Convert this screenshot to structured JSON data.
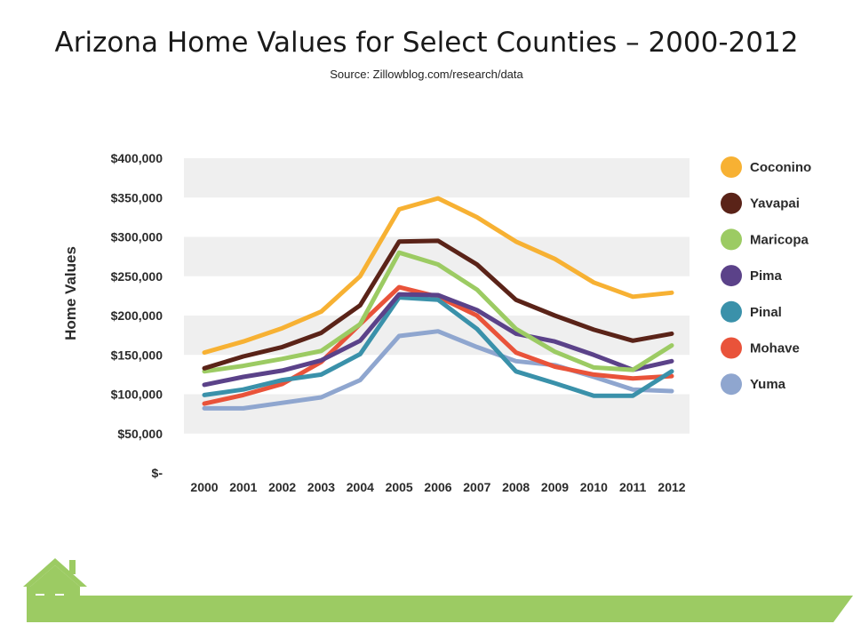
{
  "header": {
    "title": "Arizona Home Values for Select Counties – 2000-2012",
    "source": "Source: Zillowblog.com/research/data"
  },
  "chart_data": {
    "type": "line",
    "title": "Arizona Home Values for Select Counties – 2000-2012",
    "subtitle": "Source: Zillowblog.com/research/data",
    "xlabel": "",
    "ylabel": "Home Values",
    "x": [
      "2000",
      "2001",
      "2002",
      "2003",
      "2004",
      "2005",
      "2006",
      "2007",
      "2008",
      "2009",
      "2010",
      "2011",
      "2012"
    ],
    "ylim": [
      0,
      400000
    ],
    "yticks": [
      0,
      50000,
      100000,
      150000,
      200000,
      250000,
      300000,
      350000,
      400000
    ],
    "ytick_labels": [
      "$-",
      "$50,000",
      "$100,000",
      "$150,000",
      "$200,000",
      "$250,000",
      "$300,000",
      "$350,000",
      "$400,000"
    ],
    "grid": "alternating horizontal bands",
    "legend": "right",
    "series": [
      {
        "name": "Coconino",
        "color": "#f7b133",
        "values": [
          153000,
          167000,
          184000,
          205000,
          250000,
          335000,
          349000,
          325000,
          294000,
          272000,
          242000,
          224000,
          229000
        ]
      },
      {
        "name": "Yavapai",
        "color": "#5a2318",
        "values": [
          133000,
          148000,
          160000,
          178000,
          213000,
          294000,
          295000,
          265000,
          220000,
          200000,
          182000,
          168000,
          177000
        ]
      },
      {
        "name": "Maricopa",
        "color": "#9ccb63",
        "values": [
          129000,
          136000,
          145000,
          155000,
          189000,
          280000,
          265000,
          233000,
          183000,
          154000,
          134000,
          131000,
          162000
        ]
      },
      {
        "name": "Pima",
        "color": "#5b4289",
        "values": [
          112000,
          122000,
          130000,
          143000,
          168000,
          227000,
          226000,
          207000,
          177000,
          167000,
          150000,
          131000,
          142000
        ]
      },
      {
        "name": "Pinal",
        "color": "#3a91aa",
        "values": [
          99000,
          106000,
          118000,
          125000,
          151000,
          223000,
          220000,
          183000,
          129000,
          114000,
          98000,
          98000,
          129000
        ]
      },
      {
        "name": "Mohave",
        "color": "#e9533a",
        "values": [
          88000,
          99000,
          113000,
          141000,
          189000,
          236000,
          224000,
          200000,
          153000,
          135000,
          125000,
          120000,
          123000
        ]
      },
      {
        "name": "Yuma",
        "color": "#8fa6cf",
        "values": [
          82000,
          82000,
          89000,
          96000,
          118000,
          174000,
          180000,
          160000,
          142000,
          137000,
          122000,
          106000,
          104000
        ]
      }
    ]
  },
  "footer": {
    "house_color": "#9ccb63",
    "bar_color": "#9ccb63",
    "icon": "house-icon"
  }
}
